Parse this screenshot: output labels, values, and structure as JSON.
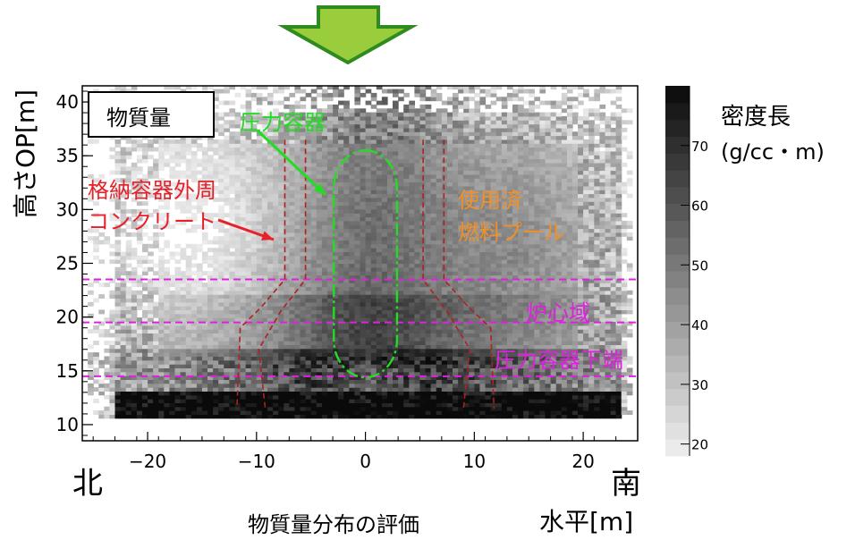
{
  "chart_data": {
    "type": "heatmap",
    "title": "",
    "xlabel": "水平[m]",
    "ylabel": "高さOP[m]",
    "caption": "物質量分布の評価",
    "legend_box": "物質量",
    "xlim": [
      -26,
      25
    ],
    "ylim": [
      8.5,
      41.5
    ],
    "x_ticks": [
      -20,
      -10,
      0,
      10,
      20
    ],
    "y_ticks": [
      10,
      15,
      20,
      25,
      30,
      35,
      40
    ],
    "x_end_left": "北",
    "x_end_right": "南",
    "colorbar": {
      "title_line1": "密度長",
      "title_line2": "(g/cc・m)",
      "range": [
        18,
        80
      ],
      "ticks": [
        20,
        30,
        40,
        50,
        60,
        70
      ]
    },
    "horizontal_lines_m": [
      23.5,
      19.5,
      14.5
    ],
    "annotations": {
      "pressure_vessel": "圧力容器",
      "containment_line1": "格納容器外周",
      "containment_line2": "コンクリート",
      "pool_line1": "使用済",
      "pool_line2": "燃料プール",
      "core_region": "炉心域",
      "vessel_bottom": "圧力容器下端"
    },
    "colors": {
      "arrow_fill": "#9acd3c",
      "arrow_stroke": "#2e8b1e",
      "containment": "#b02020",
      "annotation_red": "#e8202a",
      "vessel": "#22dd22",
      "pool": "#f0902a",
      "magenta": "#e020e0"
    }
  }
}
